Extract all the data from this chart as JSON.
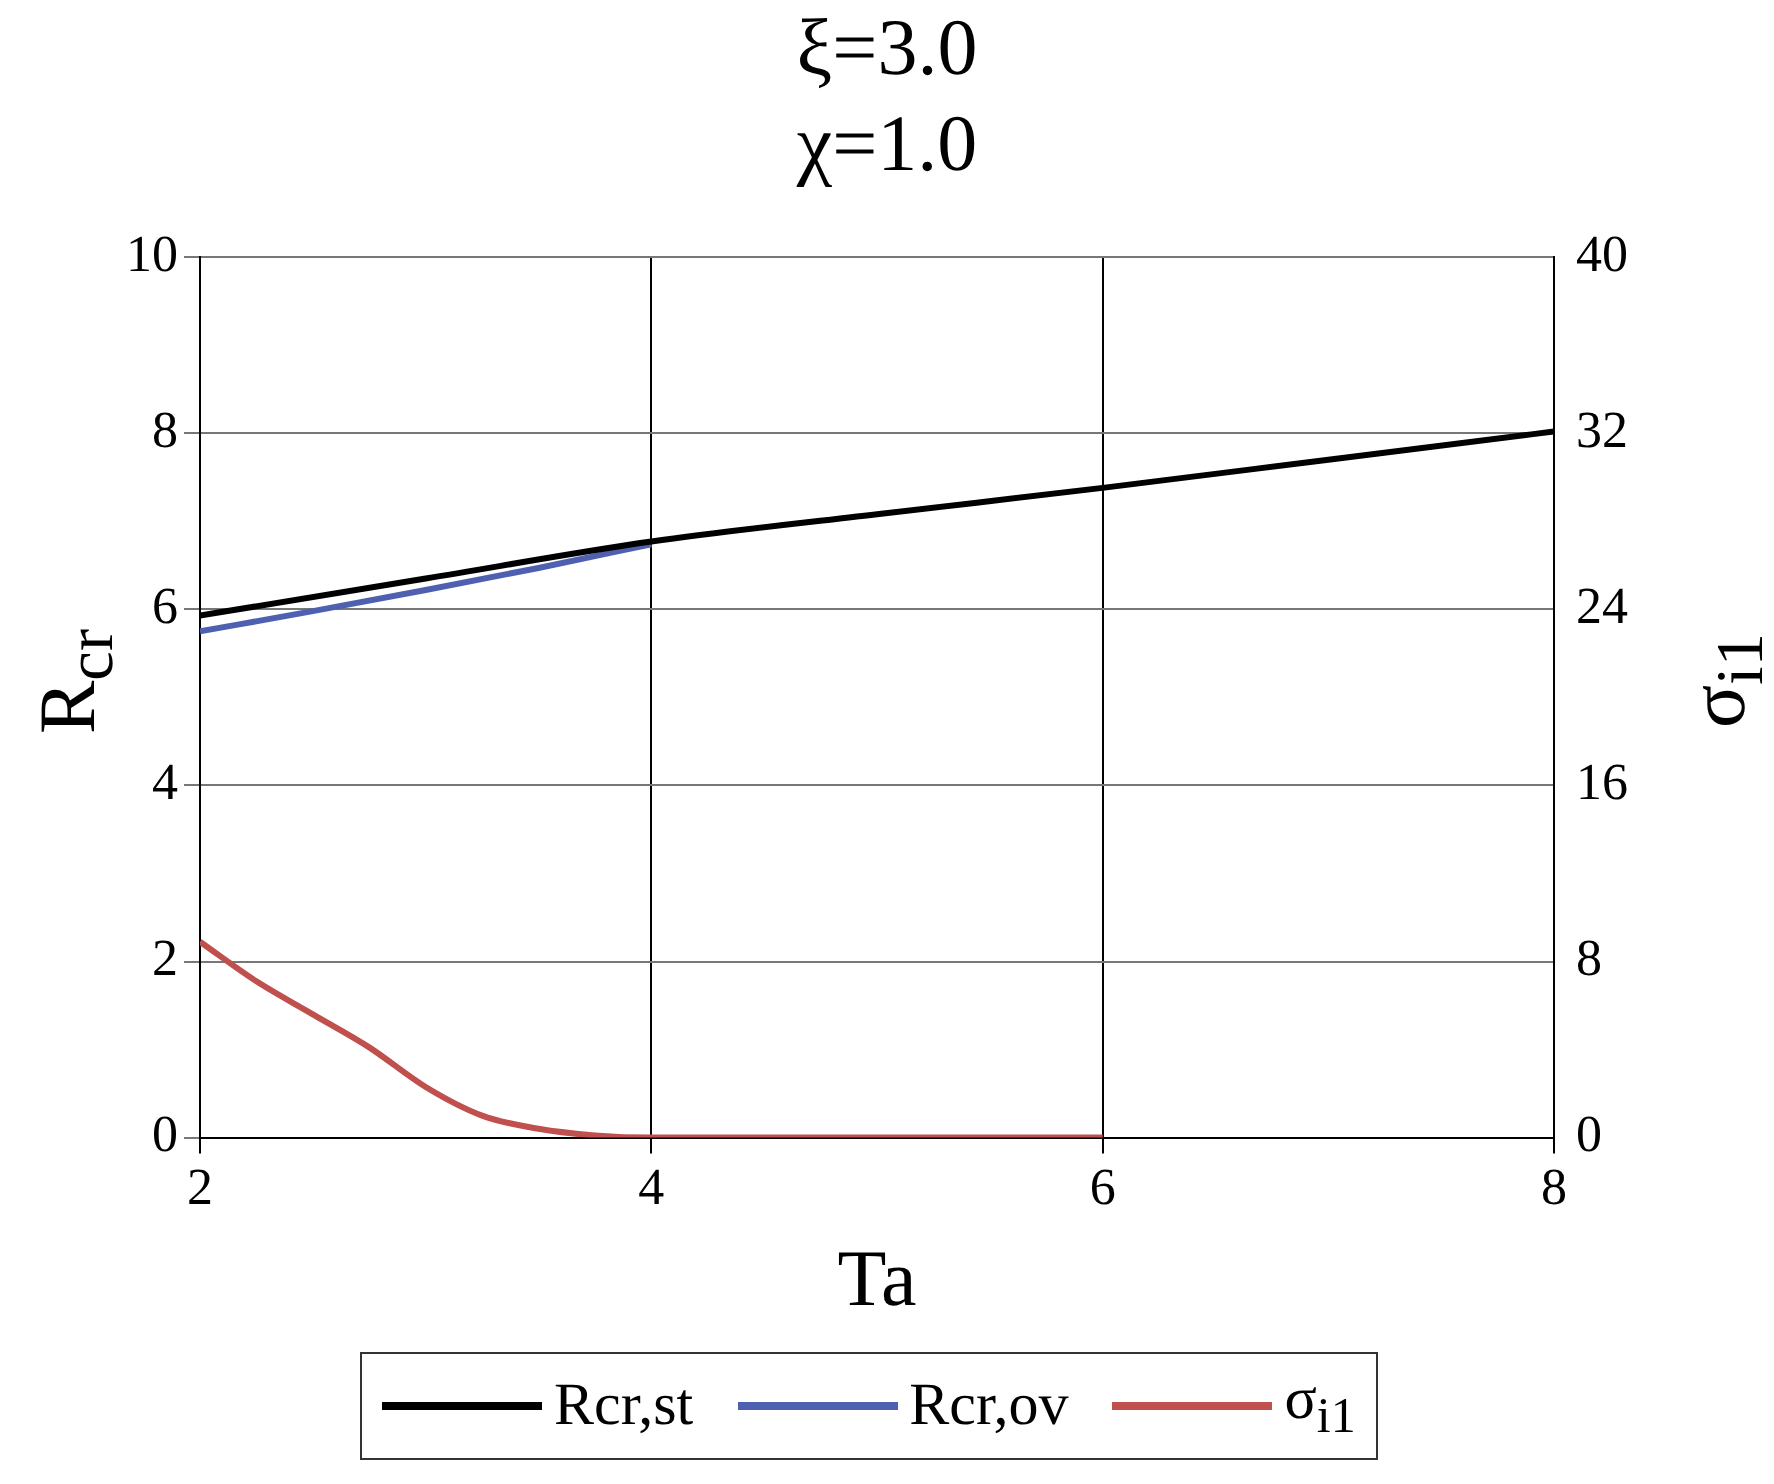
{
  "chart_data": {
    "type": "line",
    "title": "ξ=3.0",
    "subtitle": "χ=1.0",
    "xlabel": "Ta",
    "ylabel": "R$_{cr}$",
    "y2label": "σ$_{i1}$",
    "xlim": [
      2,
      8
    ],
    "xticks": [
      2,
      4,
      6,
      8
    ],
    "ylim": [
      0,
      10
    ],
    "yticks": [
      0,
      2,
      4,
      6,
      8,
      10
    ],
    "y2lim": [
      0,
      40
    ],
    "y2ticks": [
      0,
      8,
      16,
      24,
      32,
      40
    ],
    "grid": true,
    "legend": "bottom",
    "marker": "none",
    "line_style": "solid",
    "series": [
      {
        "name": "Rcr,st",
        "color": "#000000",
        "x": [
          2,
          3,
          4,
          5,
          6,
          7,
          8
        ],
        "values": [
          5.93,
          6.35,
          6.77,
          7.08,
          7.38,
          7.7,
          8.02
        ]
      },
      {
        "name": "Rcr,ov",
        "color": "#5060b0",
        "x": [
          2,
          2.5,
          3,
          3.5,
          4
        ],
        "values": [
          5.75,
          5.98,
          6.22,
          6.47,
          6.74
        ]
      },
      {
        "name": "σ$_{i1}$",
        "color": "#c0504d",
        "axis": "y2",
        "x": [
          2,
          2.25,
          2.5,
          2.75,
          3,
          3.25,
          3.5,
          3.75,
          4,
          5,
          6
        ],
        "values": [
          8.9,
          7.1,
          5.6,
          4.1,
          2.3,
          1.0,
          0.4,
          0.1,
          0,
          0,
          0
        ]
      }
    ]
  }
}
